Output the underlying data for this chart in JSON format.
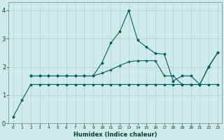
{
  "xlabel": "Humidex (Indice chaleur)",
  "bg_color": "#ceeaea",
  "grid_color": "#b0d0d0",
  "line_color": "#006060",
  "xlim": [
    -0.5,
    23.5
  ],
  "ylim": [
    0,
    4.3
  ],
  "yticks": [
    0,
    1,
    2,
    3,
    4
  ],
  "xticks": [
    0,
    1,
    2,
    3,
    4,
    5,
    6,
    7,
    8,
    9,
    10,
    11,
    12,
    13,
    14,
    15,
    16,
    17,
    18,
    19,
    20,
    21,
    22,
    23
  ],
  "line1_x": [
    0,
    1,
    2,
    3,
    4,
    5,
    6,
    7,
    8,
    9,
    10,
    11,
    12,
    13,
    14,
    15,
    16,
    17,
    18,
    19,
    20,
    21,
    22,
    23
  ],
  "line1_y": [
    0.22,
    0.82,
    1.38,
    1.38,
    1.38,
    1.38,
    1.38,
    1.38,
    1.38,
    1.38,
    1.38,
    1.38,
    1.38,
    1.38,
    1.38,
    1.38,
    1.38,
    1.38,
    1.38,
    1.38,
    1.38,
    1.38,
    1.38,
    1.38
  ],
  "line2_x": [
    2,
    3,
    4,
    5,
    6,
    7,
    8,
    9,
    10,
    11,
    12,
    13,
    14,
    15,
    16,
    17,
    18,
    19,
    20,
    21,
    22,
    23
  ],
  "line2_y": [
    1.68,
    1.68,
    1.68,
    1.68,
    1.68,
    1.68,
    1.68,
    1.68,
    1.78,
    1.9,
    2.05,
    2.18,
    2.22,
    2.22,
    2.22,
    1.68,
    1.68,
    1.38,
    1.38,
    1.38,
    2.0,
    2.5
  ],
  "line3_x": [
    2,
    3,
    4,
    5,
    6,
    7,
    8,
    9,
    10,
    11,
    12,
    13,
    14,
    15,
    16,
    17,
    18,
    19,
    20,
    21,
    22,
    23
  ],
  "line3_y": [
    1.68,
    1.68,
    1.68,
    1.68,
    1.68,
    1.68,
    1.68,
    1.68,
    2.15,
    2.85,
    3.25,
    4.0,
    2.95,
    2.7,
    2.48,
    2.45,
    1.5,
    1.68,
    1.68,
    1.38,
    2.02,
    2.5
  ]
}
